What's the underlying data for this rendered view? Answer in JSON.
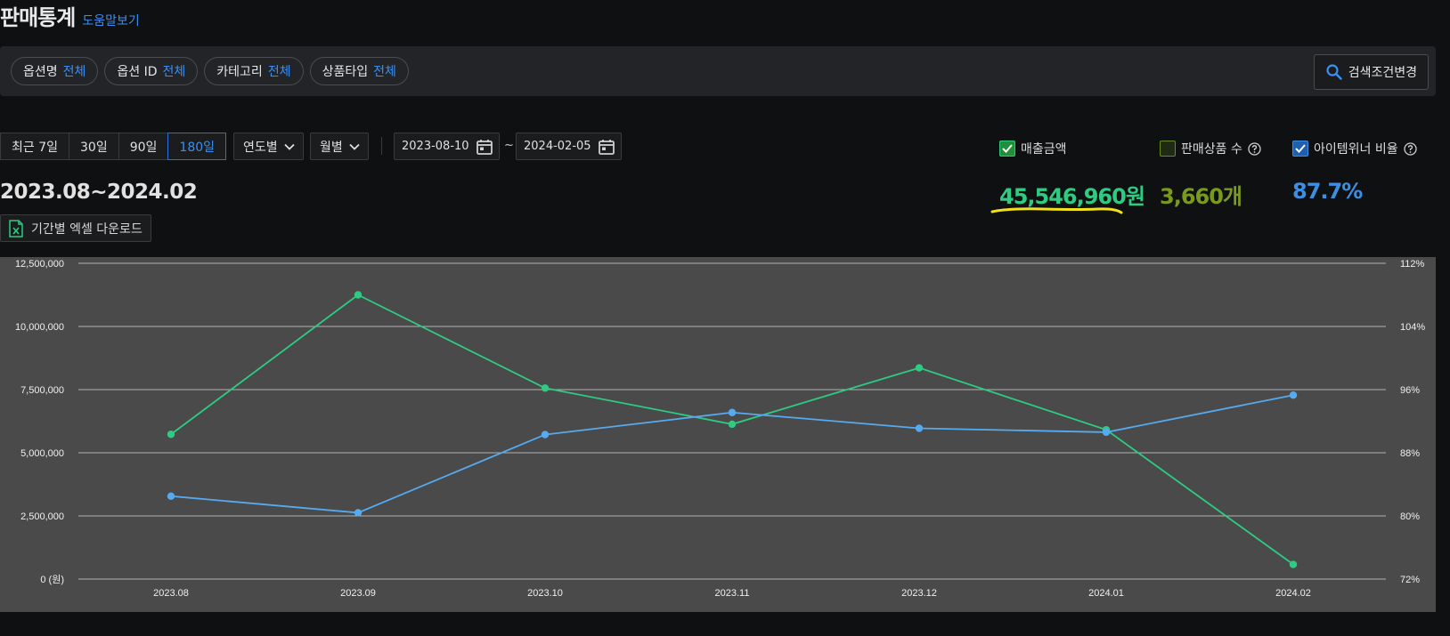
{
  "header": {
    "title": "판매통계",
    "help_link": "도움말보기"
  },
  "filters": [
    {
      "label": "옵션명",
      "value": "전체"
    },
    {
      "label": "옵션 ID",
      "value": "전체"
    },
    {
      "label": "카테고리",
      "value": "전체"
    },
    {
      "label": "상품타입",
      "value": "전체"
    }
  ],
  "search_change": {
    "icon": "search-icon",
    "label": "검색조건변경"
  },
  "period_buttons": [
    {
      "label": "최근 7일",
      "active": false
    },
    {
      "label": "30일",
      "active": false
    },
    {
      "label": "90일",
      "active": false
    },
    {
      "label": "180일",
      "active": true
    }
  ],
  "selects": {
    "year": "연도별",
    "month": "월별"
  },
  "dates": {
    "start": "2023-08-10",
    "separator": "~",
    "end": "2024-02-05"
  },
  "period_range": "2023.08~2024.02",
  "excel_download": "기간별 엑셀 다운로드",
  "metrics": {
    "sales": {
      "label": "매출금액",
      "value": "45,546,960원",
      "checked": true,
      "color": "#2ecc82"
    },
    "items": {
      "label": "판매상품 수",
      "value": "3,660개",
      "checked": false,
      "color": "#7a9a1e"
    },
    "winner": {
      "label": "아이템위너 비율",
      "value": "87.7%",
      "checked": true,
      "color": "#3d8fe0"
    }
  },
  "chart_data": {
    "type": "line",
    "categories": [
      "2023.08",
      "2023.09",
      "2023.10",
      "2023.11",
      "2023.12",
      "2024.01",
      "2024.02"
    ],
    "y_left": {
      "ticks": [
        "0 (원)",
        "2,500,000",
        "5,000,000",
        "7,500,000",
        "10,000,000",
        "12,500,000"
      ],
      "range": [
        0,
        12500000
      ]
    },
    "y_right": {
      "ticks": [
        "72%",
        "80%",
        "88%",
        "96%",
        "104%",
        "112%"
      ],
      "range": [
        72,
        112
      ]
    },
    "series": [
      {
        "name": "매출금액",
        "axis": "left",
        "color": "#2ecc82",
        "values": [
          5730000,
          11250000,
          7560000,
          6130000,
          8360000,
          5910000,
          580000
        ]
      },
      {
        "name": "아이템위너 비율",
        "axis": "right",
        "color": "#56aaf0",
        "values": [
          82.5,
          80.4,
          90.3,
          93.1,
          91.1,
          90.6,
          95.3
        ]
      }
    ],
    "grid": true
  }
}
